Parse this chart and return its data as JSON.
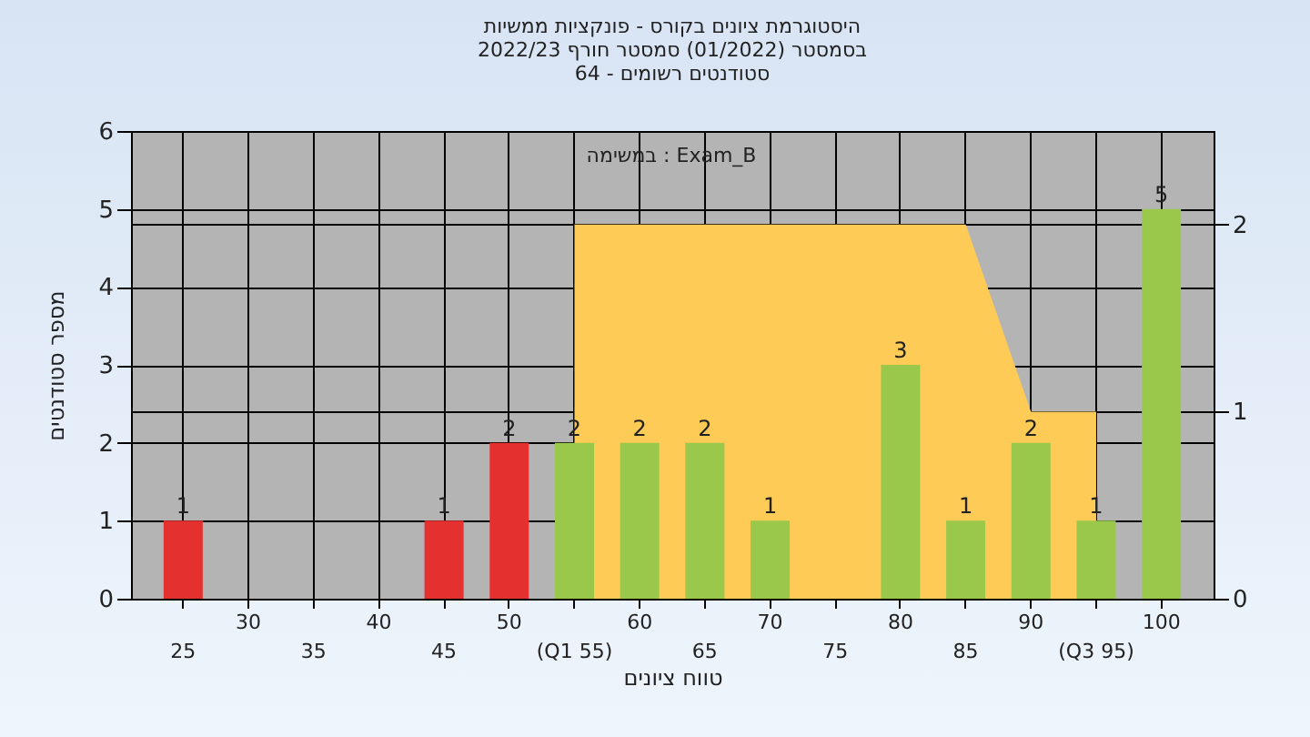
{
  "chart_data": {
    "type": "bar",
    "title": [
      "היסטוגרמת ציונים בקורס - פונקציות ממשיות",
      "בסמסטר  (01/2022)  סמסטר חורף 2022/23",
      "סטודנטים רשומים - 64"
    ],
    "annotations": [
      "במשימה : Exam_B"
    ],
    "xlabel": "טווח ציונים",
    "ylabel": "מספר סטודנטים",
    "categories": [
      "25",
      "30",
      "35",
      "40",
      "45",
      "50",
      "(Q1 55)",
      "60",
      "65",
      "70",
      "75",
      "80",
      "85",
      "90",
      "(Q3 95)",
      "100"
    ],
    "series": [
      {
        "type": "area",
        "axis": "y2",
        "color": "#fecb57",
        "values": [
          null,
          null,
          null,
          null,
          null,
          null,
          2,
          2,
          2,
          2,
          2,
          2,
          2,
          1,
          1,
          null
        ]
      },
      {
        "colors": [
          "#e53030",
          "#e53030",
          "#e53030",
          "#e53030",
          "#e53030",
          "#e53030",
          "#9ac84a",
          "#9ac84a",
          "#9ac84a",
          "#9ac84a",
          "#9ac84a",
          "#9ac84a",
          "#9ac84a",
          "#9ac84a",
          "#9ac84a",
          "#9ac84a"
        ],
        "values": [
          1,
          0,
          0,
          0,
          1,
          2,
          2,
          2,
          2,
          1,
          0,
          3,
          1,
          2,
          1,
          5
        ],
        "value_labels": [
          "1",
          null,
          null,
          null,
          "1",
          "2",
          "2",
          "2",
          "2",
          "1",
          null,
          "3",
          "1",
          "2",
          "1",
          "5"
        ]
      }
    ],
    "ylim": [
      0,
      6
    ],
    "yticks": [
      0,
      1,
      2,
      3,
      4,
      5,
      6
    ],
    "y2lim": [
      0,
      2.5
    ],
    "y2ticks": [
      0,
      1,
      2
    ],
    "grid": true
  }
}
